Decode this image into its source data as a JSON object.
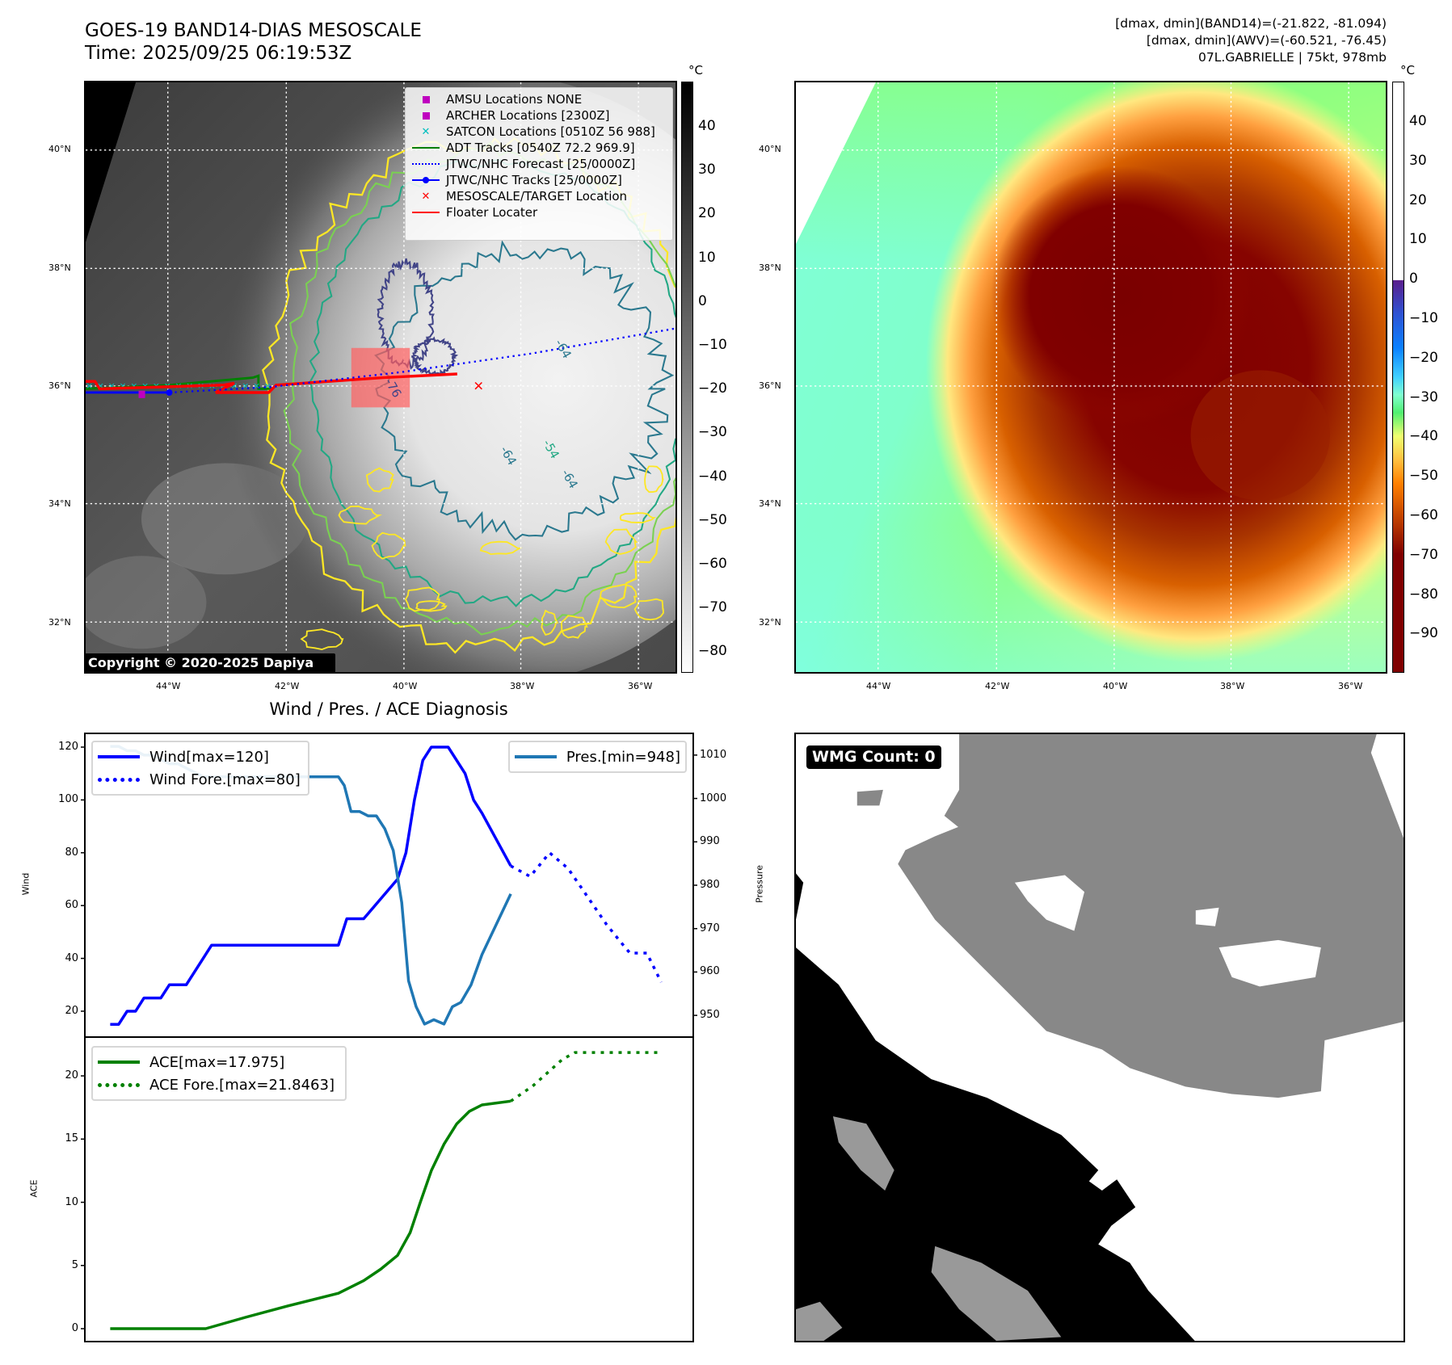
{
  "header": {
    "title_line1": "GOES-19 BAND14-DIAS MESOSCALE",
    "title_line2": "Time: 2025/09/25 06:19:53Z",
    "info_line1": "[dmax, dmin](BAND14)=(-21.822, -81.094)",
    "info_line2": "[dmax, dmin](AWV)=(-60.521, -76.45)",
    "info_line3": "07L.GABRIELLE | 75kt, 978mb"
  },
  "maps": {
    "lat_labels": [
      "40°N",
      "38°N",
      "36°N",
      "34°N",
      "32°N"
    ],
    "lon_labels": [
      "44°W",
      "42°W",
      "40°W",
      "38°W",
      "36°W"
    ],
    "unit": "°C",
    "copyright": "Copyright © 2020-2025 Dapiya",
    "contour_labels": [
      "-64",
      "-76",
      "-64",
      "-54",
      "-64"
    ],
    "legend": [
      {
        "label": "AMSU Locations NONE",
        "icon": "square-marker",
        "color": "#bf00bf"
      },
      {
        "label": "ARCHER Locations [2300Z]",
        "icon": "square-marker",
        "color": "#bf00bf"
      },
      {
        "label": "SATCON Locations [0510Z 56 988]",
        "icon": "x-marker",
        "color": "#00bfbf"
      },
      {
        "label": "ADT Tracks [0540Z 72.2 969.9]",
        "icon": "solid-line",
        "color": "#008000"
      },
      {
        "label": "JTWC/NHC Forecast [25/0000Z]",
        "icon": "dotted-line",
        "color": "#0000ff"
      },
      {
        "label": "JTWC/NHC Tracks [25/0000Z]",
        "icon": "line-dot",
        "color": "#0000ff"
      },
      {
        "label": "MESOSCALE/TARGET Location",
        "icon": "x-marker",
        "color": "#ff0000"
      },
      {
        "label": "Floater Locater",
        "icon": "solid-line",
        "color": "#ff0000"
      }
    ],
    "left_colorbar": {
      "ticks": [
        "40",
        "30",
        "20",
        "10",
        "0",
        "−10",
        "−20",
        "−30",
        "−40",
        "−50",
        "−60",
        "−70",
        "−80"
      ]
    },
    "right_colorbar": {
      "ticks": [
        "40",
        "30",
        "20",
        "10",
        "0",
        "−10",
        "−20",
        "−30",
        "−40",
        "−50",
        "−60",
        "−70",
        "−80",
        "−90"
      ]
    }
  },
  "wmg": {
    "label": "WMG Count: 0"
  },
  "chart_data": {
    "type": "line",
    "title": "Wind / Pres. / ACE Diagnosis",
    "xlim": [
      -3,
      69
    ],
    "panels": [
      {
        "ylabel": "Wind",
        "ylim": [
          10.2,
          125.2
        ],
        "yticks": [
          "20",
          "40",
          "60",
          "80",
          "100",
          "120"
        ],
        "y2label": "Pressure",
        "y2lim": [
          945,
          1015
        ],
        "y2ticks": [
          "950",
          "960",
          "970",
          "980",
          "990",
          "1000",
          "1010"
        ],
        "series": [
          {
            "name": "Wind[max=120]",
            "axis": "left",
            "color": "#0000ff",
            "style": "solid",
            "points": [
              [
                0,
                15
              ],
              [
                1,
                15
              ],
              [
                2,
                20
              ],
              [
                3,
                20
              ],
              [
                4,
                25
              ],
              [
                6,
                25
              ],
              [
                7,
                30
              ],
              [
                9,
                30
              ],
              [
                12,
                45
              ],
              [
                27,
                45
              ],
              [
                28,
                55
              ],
              [
                30,
                55
              ],
              [
                34,
                70
              ],
              [
                35,
                80
              ],
              [
                36,
                100
              ],
              [
                37,
                115
              ],
              [
                38,
                120
              ],
              [
                40,
                120
              ],
              [
                42,
                110
              ],
              [
                43,
                100
              ],
              [
                44,
                95
              ],
              [
                47.4,
                75
              ]
            ]
          },
          {
            "name": "Wind Fore.[max=80]",
            "axis": "left",
            "color": "#0000ff",
            "style": "dotted",
            "points": [
              [
                47.4,
                75
              ],
              [
                49.7,
                71
              ],
              [
                52,
                80
              ],
              [
                54.2,
                74
              ],
              [
                55.7,
                67
              ],
              [
                57.2,
                60
              ],
              [
                58.7,
                53
              ],
              [
                60.2,
                47
              ],
              [
                61.5,
                42
              ],
              [
                63.5,
                42
              ],
              [
                65.2,
                31
              ]
            ]
          },
          {
            "name": "Pres.[min=948]",
            "axis": "right",
            "color": "#1f77b4",
            "style": "solid",
            "points": [
              [
                0,
                1012
              ],
              [
                1,
                1012
              ],
              [
                2,
                1011
              ],
              [
                3,
                1011
              ],
              [
                4,
                1010
              ],
              [
                5,
                1010
              ],
              [
                6,
                1009
              ],
              [
                7,
                1008
              ],
              [
                8,
                1008
              ],
              [
                9,
                1007
              ],
              [
                10,
                1006
              ],
              [
                11,
                1005
              ],
              [
                12,
                1005
              ],
              [
                27,
                1005
              ],
              [
                27.7,
                1003
              ],
              [
                28.5,
                997
              ],
              [
                29.5,
                997
              ],
              [
                30.5,
                996
              ],
              [
                31.5,
                996
              ],
              [
                32.5,
                993
              ],
              [
                33.5,
                988
              ],
              [
                34.5,
                976
              ],
              [
                35.3,
                958
              ],
              [
                36.2,
                952
              ],
              [
                37.2,
                948
              ],
              [
                38.3,
                949
              ],
              [
                39.5,
                948
              ],
              [
                40.5,
                952
              ],
              [
                41.5,
                953
              ],
              [
                42.7,
                957
              ],
              [
                44,
                964
              ],
              [
                47.4,
                978
              ]
            ]
          }
        ]
      },
      {
        "ylabel": "ACE",
        "ylim": [
          -1.02,
          23.07
        ],
        "yticks": [
          "0",
          "5",
          "10",
          "15",
          "20"
        ],
        "series": [
          {
            "name": "ACE[max=17.975]",
            "axis": "left",
            "color": "#008000",
            "style": "solid",
            "points": [
              [
                0,
                0
              ],
              [
                11.3,
                0
              ],
              [
                16,
                0.9
              ],
              [
                21,
                1.8
              ],
              [
                27,
                2.8
              ],
              [
                30,
                3.8
              ],
              [
                32,
                4.7
              ],
              [
                34,
                5.8
              ],
              [
                35.5,
                7.6
              ],
              [
                36.7,
                10
              ],
              [
                38,
                12.5
              ],
              [
                39.5,
                14.6
              ],
              [
                41,
                16.2
              ],
              [
                42.5,
                17.2
              ],
              [
                44,
                17.7
              ],
              [
                47.4,
                18
              ]
            ]
          },
          {
            "name": "ACE Fore.[max=21.8463]",
            "axis": "left",
            "color": "#008000",
            "style": "dotted",
            "points": [
              [
                47.4,
                18
              ],
              [
                50,
                19.2
              ],
              [
                52,
                20.4
              ],
              [
                53.5,
                21.3
              ],
              [
                55,
                21.85
              ],
              [
                65.2,
                21.85
              ]
            ]
          }
        ]
      }
    ]
  }
}
